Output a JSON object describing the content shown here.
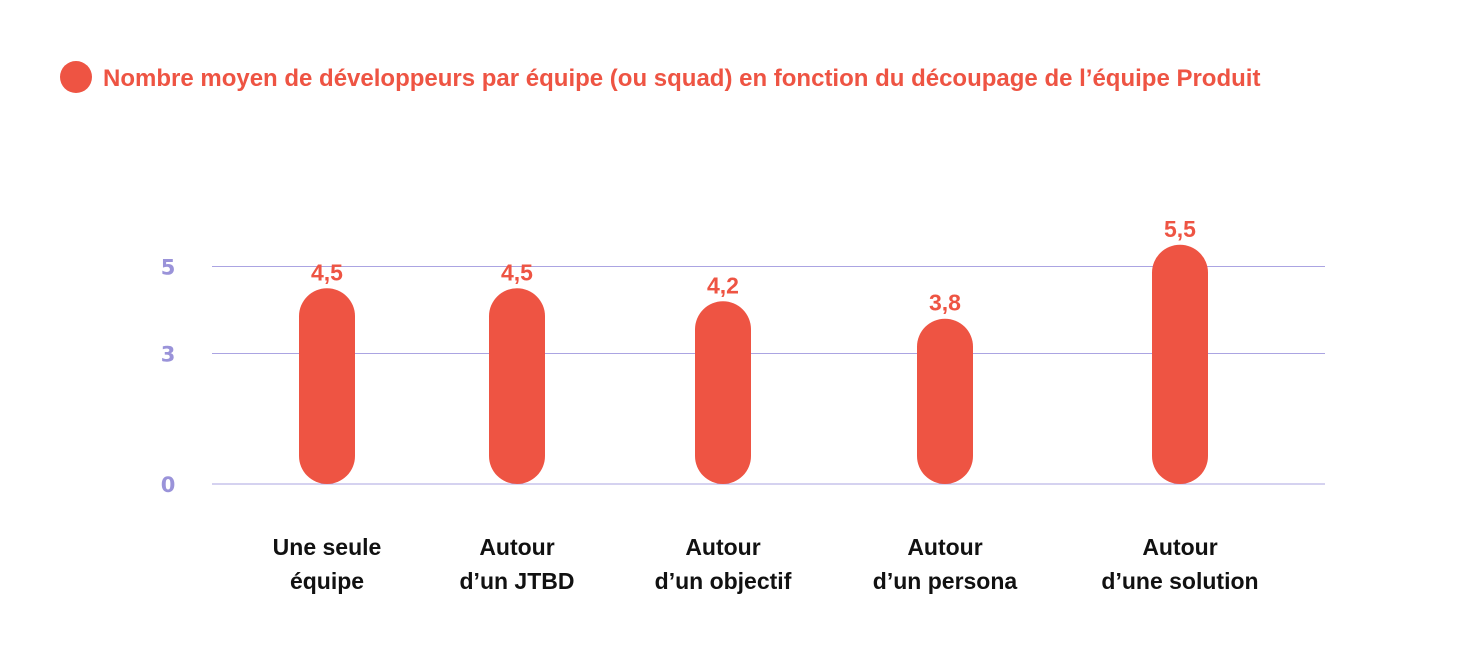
{
  "colors": {
    "bar": "#ee5443",
    "title": "#ee5443",
    "value_label": "#ee5443",
    "tick": "#9a93d9",
    "grid": "#aba4e2",
    "category": "#111111"
  },
  "legend_marker_icon": "circle",
  "chart_data": {
    "type": "bar",
    "title": "Nombre moyen de développeurs par équipe (ou squad) en fonction du découpage de l’équipe Produit",
    "categories": [
      [
        "Une seule",
        "équipe"
      ],
      [
        "Autour",
        "d’un JTBD"
      ],
      [
        "Autour",
        "d’un objectif"
      ],
      [
        "Autour",
        "d’un persona"
      ],
      [
        "Autour",
        "d’une solution"
      ]
    ],
    "values": [
      4.5,
      4.5,
      4.2,
      3.8,
      5.5
    ],
    "value_labels": [
      "4,5",
      "4,5",
      "4,2",
      "3,8",
      "5,5"
    ],
    "y_ticks": [
      0,
      3,
      5
    ],
    "y_tick_labels": [
      "0",
      "3",
      "5"
    ],
    "ylim": [
      0,
      6
    ],
    "xlabel": "",
    "ylabel": "",
    "grid": true,
    "legend_placement": "top-left"
  }
}
